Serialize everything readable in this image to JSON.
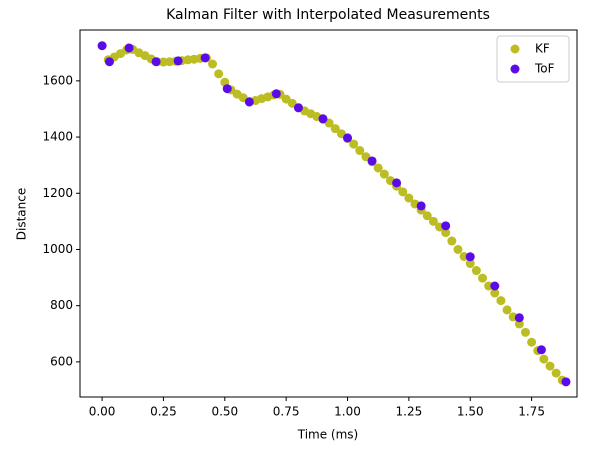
{
  "chart_data": {
    "type": "scatter",
    "title": "Kalman Filter with Interpolated Measurements",
    "x_label": "Time (ms)",
    "y_label": "Distance",
    "xlim": [
      -0.09,
      1.935
    ],
    "ylim": [
      475,
      1781
    ],
    "xticks": [
      {
        "value": 0,
        "label": "0.00"
      },
      {
        "value": 0.25,
        "label": "0.25"
      },
      {
        "value": 0.5,
        "label": "0.50"
      },
      {
        "value": 0.75,
        "label": "0.75"
      },
      {
        "value": 1,
        "label": "1.00"
      },
      {
        "value": 1.25,
        "label": "1.25"
      },
      {
        "value": 1.5,
        "label": "1.50"
      },
      {
        "value": 1.75,
        "label": "1.75"
      }
    ],
    "yticks": [
      600,
      800,
      1000,
      1200,
      1400,
      1600
    ],
    "legend": "upper right",
    "series": [
      {
        "name": "KF",
        "color": "#bcbd22",
        "x": [
          0.025,
          0.05,
          0.075,
          0.1,
          0.125,
          0.15,
          0.175,
          0.2,
          0.225,
          0.25,
          0.275,
          0.3,
          0.325,
          0.35,
          0.375,
          0.4,
          0.425,
          0.45,
          0.475,
          0.5,
          0.525,
          0.55,
          0.575,
          0.6,
          0.625,
          0.65,
          0.675,
          0.7,
          0.725,
          0.75,
          0.775,
          0.8,
          0.825,
          0.85,
          0.875,
          0.9,
          0.925,
          0.95,
          0.975,
          1.0,
          1.025,
          1.05,
          1.075,
          1.1,
          1.125,
          1.15,
          1.175,
          1.2,
          1.225,
          1.25,
          1.275,
          1.3,
          1.325,
          1.35,
          1.375,
          1.4,
          1.425,
          1.45,
          1.475,
          1.5,
          1.525,
          1.55,
          1.575,
          1.6,
          1.625,
          1.65,
          1.675,
          1.7,
          1.725,
          1.75,
          1.775,
          1.8,
          1.825,
          1.85,
          1.875
        ],
        "values": [
          1675,
          1685,
          1697,
          1710,
          1712,
          1700,
          1690,
          1678,
          1668,
          1667,
          1668,
          1670,
          1672,
          1675,
          1677,
          1680,
          1682,
          1660,
          1625,
          1595,
          1568,
          1553,
          1540,
          1527,
          1530,
          1537,
          1543,
          1550,
          1552,
          1535,
          1520,
          1505,
          1493,
          1483,
          1473,
          1463,
          1450,
          1430,
          1412,
          1395,
          1375,
          1352,
          1330,
          1312,
          1290,
          1268,
          1245,
          1225,
          1205,
          1183,
          1162,
          1140,
          1120,
          1100,
          1080,
          1060,
          1030,
          1000,
          975,
          950,
          925,
          898,
          870,
          845,
          818,
          785,
          760,
          735,
          705,
          670,
          640,
          610,
          585,
          560,
          535
        ]
      },
      {
        "name": "ToF",
        "color": "#5b0be8",
        "x": [
          0,
          0.03,
          0.11,
          0.22,
          0.31,
          0.42,
          0.51,
          0.6,
          0.71,
          0.8,
          0.9,
          1.0,
          1.1,
          1.2,
          1.3,
          1.4,
          1.5,
          1.6,
          1.7,
          1.79,
          1.89
        ],
        "values": [
          1725,
          1668,
          1717,
          1668,
          1671,
          1682,
          1572,
          1525,
          1554,
          1504,
          1465,
          1397,
          1315,
          1237,
          1155,
          1084,
          974,
          870,
          757,
          643,
          529
        ]
      }
    ]
  }
}
